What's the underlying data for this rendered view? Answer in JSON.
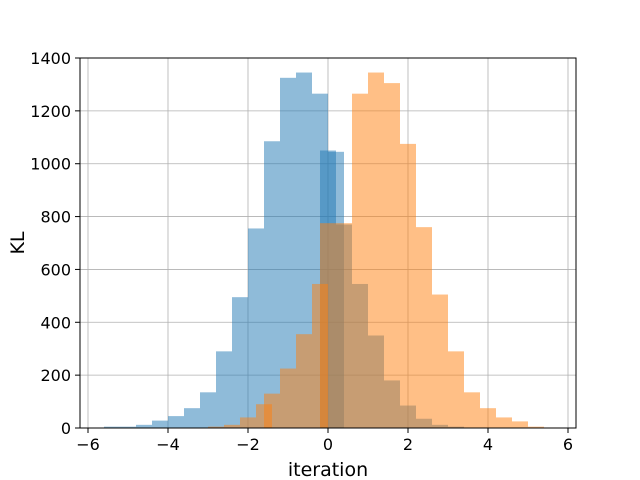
{
  "chart_data": {
    "type": "bar",
    "title": "",
    "xlabel": "iteration",
    "ylabel": "KL",
    "xlim": [
      -6.2,
      6.2
    ],
    "ylim": [
      0,
      1400
    ],
    "xticks": [
      -6,
      -4,
      -2,
      0,
      2,
      4,
      6
    ],
    "yticks": [
      0,
      200,
      400,
      600,
      800,
      1000,
      1200,
      1400
    ],
    "grid": true,
    "legend": "none",
    "series": [
      {
        "color": "#1f77b4",
        "opacity": 0.5,
        "bin_width": 0.4,
        "bins": [
          {
            "x0": -5.6,
            "count": 5
          },
          {
            "x0": -5.2,
            "count": 5
          },
          {
            "x0": -4.8,
            "count": 12
          },
          {
            "x0": -4.4,
            "count": 28
          },
          {
            "x0": -4.0,
            "count": 45
          },
          {
            "x0": -3.6,
            "count": 75
          },
          {
            "x0": -3.2,
            "count": 135
          },
          {
            "x0": -2.8,
            "count": 290
          },
          {
            "x0": -2.4,
            "count": 495
          },
          {
            "x0": -2.0,
            "count": 755
          },
          {
            "x0": -1.6,
            "count": 1085
          },
          {
            "x0": -1.2,
            "count": 1325
          },
          {
            "x0": -0.8,
            "count": 1345
          },
          {
            "x0": -0.4,
            "count": 1265
          },
          {
            "x0": -0.2,
            "count": 1050
          },
          {
            "x0": 0.0,
            "count": 1045
          },
          {
            "x0": 0.2,
            "count": 770
          },
          {
            "x0": 0.6,
            "count": 545
          },
          {
            "x0": 1.0,
            "count": 350
          },
          {
            "x0": 1.4,
            "count": 180
          },
          {
            "x0": 1.8,
            "count": 85
          },
          {
            "x0": 2.2,
            "count": 35
          },
          {
            "x0": 2.6,
            "count": 12
          },
          {
            "x0": 3.0,
            "count": 5
          }
        ]
      },
      {
        "color": "#ff7f0e",
        "opacity": 0.5,
        "bin_width": 0.4,
        "bins": [
          {
            "x0": -3.0,
            "count": 5
          },
          {
            "x0": -2.6,
            "count": 12
          },
          {
            "x0": -2.2,
            "count": 40
          },
          {
            "x0": -1.8,
            "count": 90
          },
          {
            "x0": -1.6,
            "count": 130
          },
          {
            "x0": -1.2,
            "count": 225
          },
          {
            "x0": -0.8,
            "count": 355
          },
          {
            "x0": -0.4,
            "count": 545
          },
          {
            "x0": -0.2,
            "count": 775
          },
          {
            "x0": 0.2,
            "count": 775
          },
          {
            "x0": 0.6,
            "count": 1265
          },
          {
            "x0": 1.0,
            "count": 1345
          },
          {
            "x0": 1.4,
            "count": 1305
          },
          {
            "x0": 1.8,
            "count": 1075
          },
          {
            "x0": 2.2,
            "count": 760
          },
          {
            "x0": 2.6,
            "count": 505
          },
          {
            "x0": 3.0,
            "count": 290
          },
          {
            "x0": 3.4,
            "count": 135
          },
          {
            "x0": 3.8,
            "count": 75
          },
          {
            "x0": 4.2,
            "count": 40
          },
          {
            "x0": 4.6,
            "count": 25
          },
          {
            "x0": 5.0,
            "count": 5
          },
          {
            "x0": 5.4,
            "count": 2
          }
        ]
      }
    ]
  }
}
